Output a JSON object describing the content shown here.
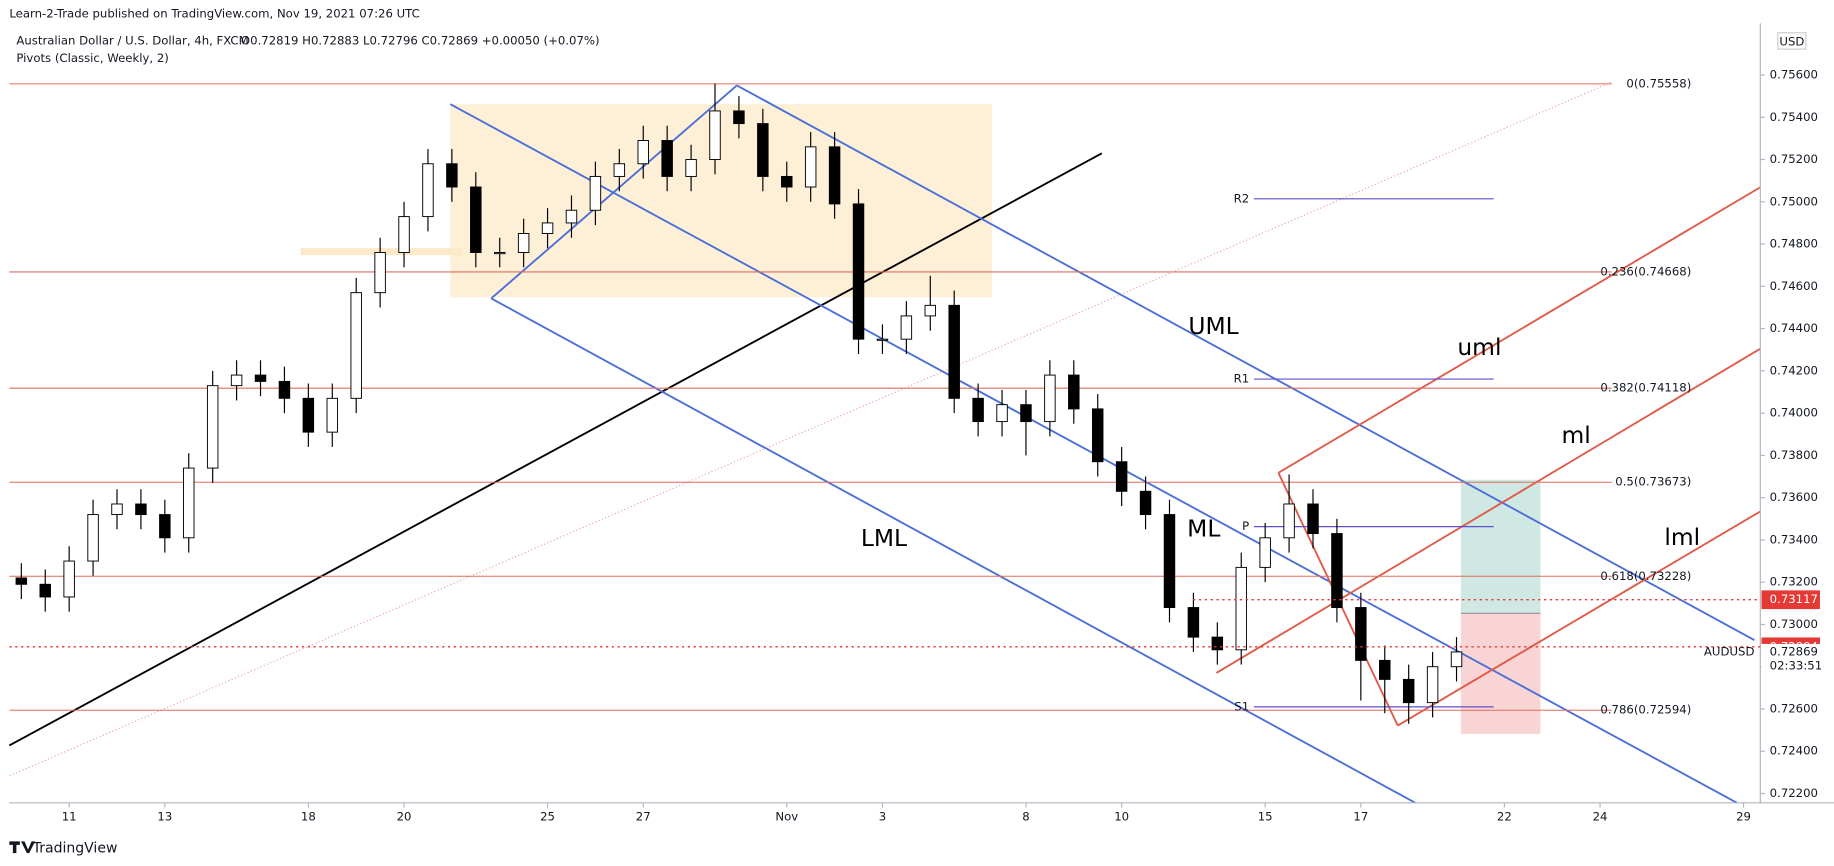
{
  "header": {
    "publisher": "Learn-2-Trade published on TradingView.com, Nov 19, 2021 07:26 UTC",
    "footer": "TradingView"
  },
  "chart_data": {
    "type": "candlestick",
    "title": "Australian Dollar / U.S. Dollar, 4h, FXCM",
    "ohlc_text": "O0.72819 H0.72883 L0.72796 C0.72869 +0.00050 (+0.07%)",
    "indicator": "Pivots (Classic, Weekly, 2)",
    "currency": "USD",
    "xlim": [
      -1.25,
      35.35
    ],
    "ylim": [
      0.72156,
      0.75822
    ],
    "xticks": [
      {
        "value": 0,
        "label": "11"
      },
      {
        "value": 2,
        "label": "13"
      },
      {
        "value": 5,
        "label": "18"
      },
      {
        "value": 7,
        "label": "20"
      },
      {
        "value": 10,
        "label": "25"
      },
      {
        "value": 12,
        "label": "27"
      },
      {
        "value": 15,
        "label": "Nov"
      },
      {
        "value": 17,
        "label": "3"
      },
      {
        "value": 20,
        "label": "8"
      },
      {
        "value": 22,
        "label": "10"
      },
      {
        "value": 25,
        "label": "15"
      },
      {
        "value": 27,
        "label": "17"
      },
      {
        "value": 30,
        "label": "22"
      },
      {
        "value": 32,
        "label": "24"
      },
      {
        "value": 35,
        "label": "29"
      }
    ],
    "yticks": [
      {
        "value": 0.722,
        "label": "0.72200"
      },
      {
        "value": 0.724,
        "label": "0.72400"
      },
      {
        "value": 0.726,
        "label": "0.72600"
      },
      {
        "value": 0.728,
        "label": "0.72800"
      },
      {
        "value": 0.73,
        "label": "0.73000"
      },
      {
        "value": 0.732,
        "label": "0.73200"
      },
      {
        "value": 0.734,
        "label": "0.73400"
      },
      {
        "value": 0.736,
        "label": "0.73600"
      },
      {
        "value": 0.738,
        "label": "0.73800"
      },
      {
        "value": 0.74,
        "label": "0.74000"
      },
      {
        "value": 0.742,
        "label": "0.74200"
      },
      {
        "value": 0.744,
        "label": "0.74400"
      },
      {
        "value": 0.746,
        "label": "0.74600"
      },
      {
        "value": 0.748,
        "label": "0.74800"
      },
      {
        "value": 0.75,
        "label": "0.75000"
      },
      {
        "value": 0.752,
        "label": "0.75200"
      },
      {
        "value": 0.754,
        "label": "0.75400"
      },
      {
        "value": 0.756,
        "label": "0.75600"
      }
    ],
    "x": [
      -1,
      -0.5,
      0,
      0.5,
      1,
      1.5,
      2,
      2.5,
      3,
      3.5,
      4,
      4.5,
      5,
      5.5,
      6,
      6.5,
      7,
      7.5,
      8,
      8.5,
      9,
      9.5,
      10,
      10.5,
      11,
      11.5,
      12,
      12.5,
      13,
      13.5,
      14,
      14.5,
      15,
      15.5,
      16,
      16.5,
      17,
      17.5,
      18,
      18.5,
      19,
      19.5,
      20,
      20.5,
      21,
      21.5,
      22,
      22.5,
      23,
      23.5,
      24,
      24.5,
      25,
      25.5,
      26,
      26.5,
      27,
      27.5,
      28,
      28.5,
      29
    ],
    "open": [
      0.7322,
      0.7319,
      0.7313,
      0.733,
      0.7352,
      0.7357,
      0.7352,
      0.7341,
      0.7374,
      0.7413,
      0.7418,
      0.7415,
      0.7407,
      0.7391,
      0.7407,
      0.7457,
      0.7476,
      0.7493,
      0.7518,
      0.7507,
      0.7476,
      0.7476,
      0.7485,
      0.749,
      0.7496,
      0.7512,
      0.7518,
      0.7529,
      0.7512,
      0.752,
      0.7543,
      0.7537,
      0.7512,
      0.7507,
      0.7526,
      0.7499,
      0.7435,
      0.7435,
      0.7446,
      0.7451,
      0.7407,
      0.7396,
      0.7404,
      0.7396,
      0.7418,
      0.7402,
      0.7377,
      0.7363,
      0.7352,
      0.7308,
      0.7294,
      0.7288,
      0.7327,
      0.7341,
      0.7357,
      0.7343,
      0.7308,
      0.7283,
      0.7274,
      0.7263,
      0.728
    ],
    "high": [
      0.7329,
      0.7326,
      0.7337,
      0.7359,
      0.7364,
      0.7364,
      0.7359,
      0.7381,
      0.742,
      0.7425,
      0.7425,
      0.7422,
      0.7414,
      0.7414,
      0.7464,
      0.7483,
      0.75,
      0.7525,
      0.7525,
      0.7514,
      0.7483,
      0.7492,
      0.7497,
      0.7503,
      0.7519,
      0.7525,
      0.7536,
      0.7536,
      0.7527,
      0.7556,
      0.755,
      0.7544,
      0.7519,
      0.7533,
      0.7533,
      0.7506,
      0.7442,
      0.7453,
      0.7465,
      0.7458,
      0.7414,
      0.7411,
      0.7411,
      0.7425,
      0.7425,
      0.7409,
      0.7384,
      0.737,
      0.7359,
      0.7315,
      0.7301,
      0.7334,
      0.7348,
      0.7371,
      0.7364,
      0.735,
      0.7315,
      0.729,
      0.7281,
      0.7287,
      0.7294
    ],
    "low": [
      0.7312,
      0.7306,
      0.7306,
      0.7323,
      0.7345,
      0.7345,
      0.7334,
      0.7334,
      0.7367,
      0.7406,
      0.7408,
      0.74,
      0.7384,
      0.7384,
      0.74,
      0.745,
      0.7469,
      0.7486,
      0.75,
      0.7469,
      0.7469,
      0.7469,
      0.7478,
      0.7483,
      0.7489,
      0.7505,
      0.7511,
      0.7505,
      0.7505,
      0.7513,
      0.753,
      0.7505,
      0.75,
      0.75,
      0.7492,
      0.7428,
      0.7428,
      0.7428,
      0.7439,
      0.74,
      0.7389,
      0.7389,
      0.738,
      0.7389,
      0.7395,
      0.737,
      0.7356,
      0.7345,
      0.7301,
      0.7287,
      0.7281,
      0.7281,
      0.732,
      0.7334,
      0.7336,
      0.7301,
      0.7264,
      0.7258,
      0.7253,
      0.7256,
      0.7273
    ],
    "close": [
      0.7319,
      0.7313,
      0.733,
      0.7352,
      0.7357,
      0.7352,
      0.7341,
      0.7374,
      0.7413,
      0.7418,
      0.7415,
      0.7407,
      0.7391,
      0.7407,
      0.7457,
      0.7476,
      0.7493,
      0.7518,
      0.7507,
      0.7476,
      0.7476,
      0.7485,
      0.749,
      0.7496,
      0.7512,
      0.7518,
      0.7529,
      0.7512,
      0.752,
      0.7543,
      0.7537,
      0.7512,
      0.7507,
      0.7526,
      0.7499,
      0.7435,
      0.7435,
      0.7446,
      0.7451,
      0.7407,
      0.7396,
      0.7404,
      0.7396,
      0.7418,
      0.7402,
      0.7377,
      0.7363,
      0.7352,
      0.7308,
      0.7294,
      0.7288,
      0.7327,
      0.7341,
      0.7357,
      0.7343,
      0.7308,
      0.7283,
      0.7274,
      0.7263,
      0.728,
      0.7287
    ],
    "up_color": "#ffffff",
    "down_color": "#000000",
    "fib_color": "#e06c5f",
    "fib_levels": [
      {
        "value": 0.75558,
        "label": "0(0.75558)"
      },
      {
        "value": 0.74668,
        "label": "0.236(0.74668)"
      },
      {
        "value": 0.74118,
        "label": "0.382(0.74118)"
      },
      {
        "value": 0.73673,
        "label": "0.5(0.73673)"
      },
      {
        "value": 0.73228,
        "label": "0.618(0.73228)"
      },
      {
        "value": 0.72594,
        "label": "0.786(0.72594)"
      }
    ],
    "pivot_color": "#5e50c8",
    "pivots": [
      {
        "value": 0.75014,
        "label": "R2"
      },
      {
        "value": 0.74161,
        "label": "R1"
      },
      {
        "value": 0.73463,
        "label": "P"
      },
      {
        "value": 0.7261,
        "label": "S1"
      }
    ],
    "price_marks": [
      {
        "value": 0.73117,
        "label": "0.73117"
      },
      {
        "value": 0.72894,
        "label": "0.72894"
      }
    ],
    "price_mark_color": "#e53935",
    "last_price": {
      "value": 0.72869,
      "label": "0.72869"
    },
    "symbol": "AUDUSD",
    "countdown": "02:33:51",
    "annotations": [
      "UML",
      "uml",
      "ml",
      "LML",
      "ML",
      "lml"
    ]
  }
}
